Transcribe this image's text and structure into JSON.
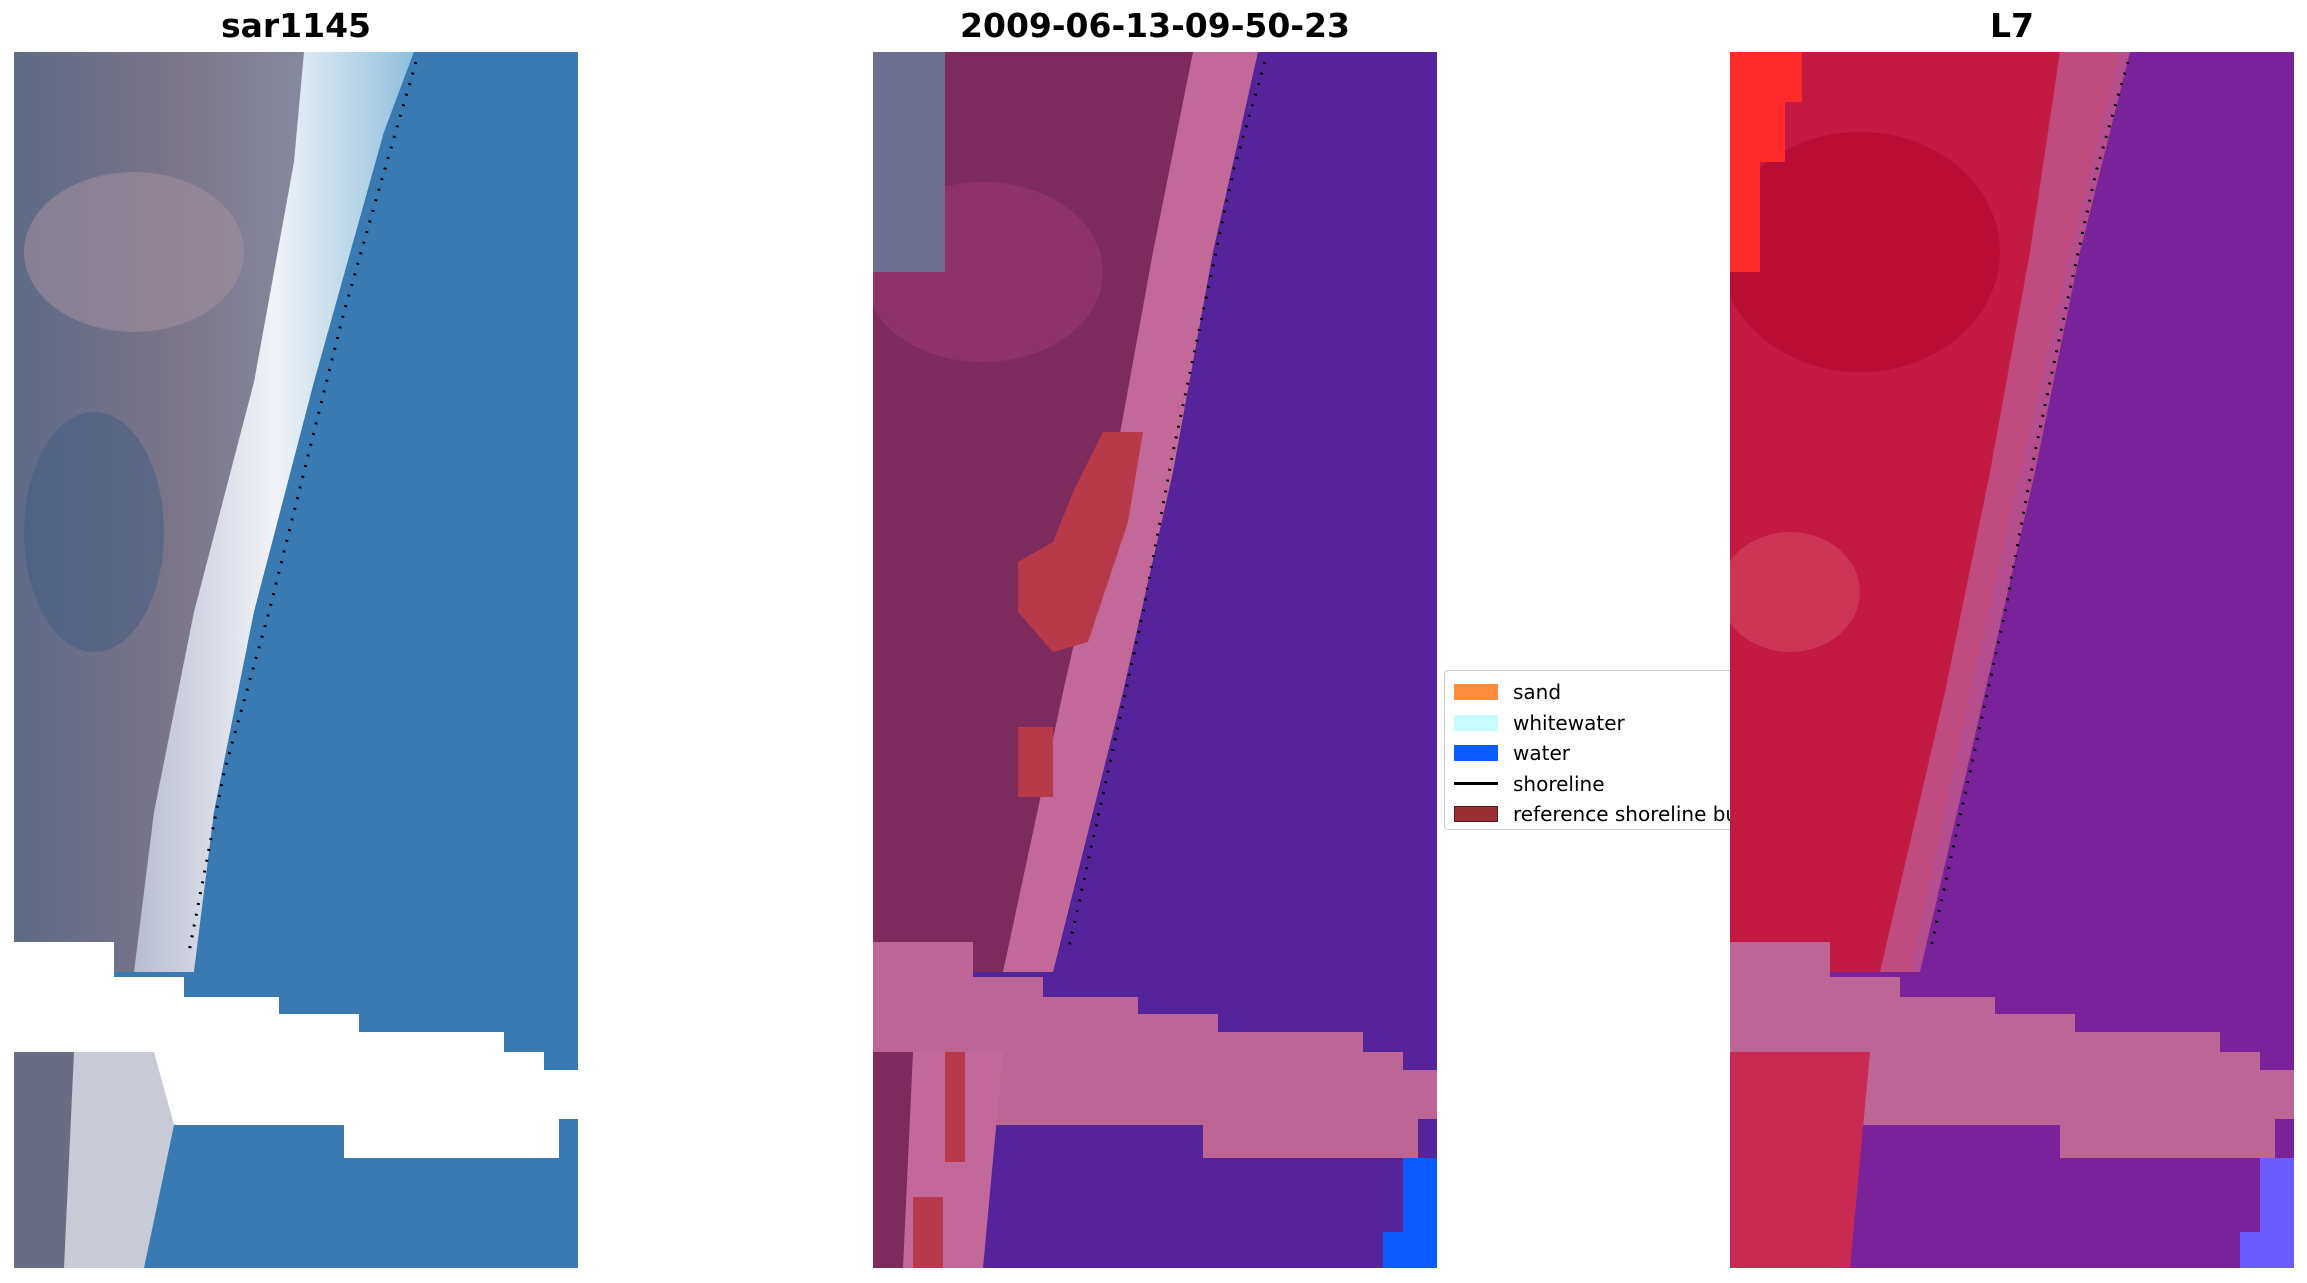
{
  "panels": [
    {
      "title": "sar1145"
    },
    {
      "title": "2009-06-13-09-50-23"
    },
    {
      "title": "L7"
    }
  ],
  "legend": {
    "items": [
      {
        "label": "sand",
        "color": "#ff8c3c",
        "kind": "patch"
      },
      {
        "label": "whitewater",
        "color": "#c8fcfc",
        "kind": "patch"
      },
      {
        "label": "water",
        "color": "#0a5cff",
        "kind": "patch"
      },
      {
        "label": "shoreline",
        "color": "#000000",
        "kind": "line"
      },
      {
        "label": "reference shoreline buffer",
        "color": "#9b2f35",
        "kind": "patch"
      }
    ]
  },
  "colors": {
    "rgb_land": "#6e7088",
    "rgb_beach": "#e8eaf2",
    "rgb_water": "#3a7ab0",
    "class_land": "#7d2a5c",
    "class_beach": "#c2699a",
    "class_water": "#55239a",
    "class_buffer": "#b83a4a",
    "class_mask": "#bd6594",
    "class_water_px": "#0a5cff",
    "l7_land": "#c21a42",
    "l7_water": "#7a229a",
    "l7_sand": "#ff2a2a",
    "l7_water_px": "#6a5cff"
  }
}
